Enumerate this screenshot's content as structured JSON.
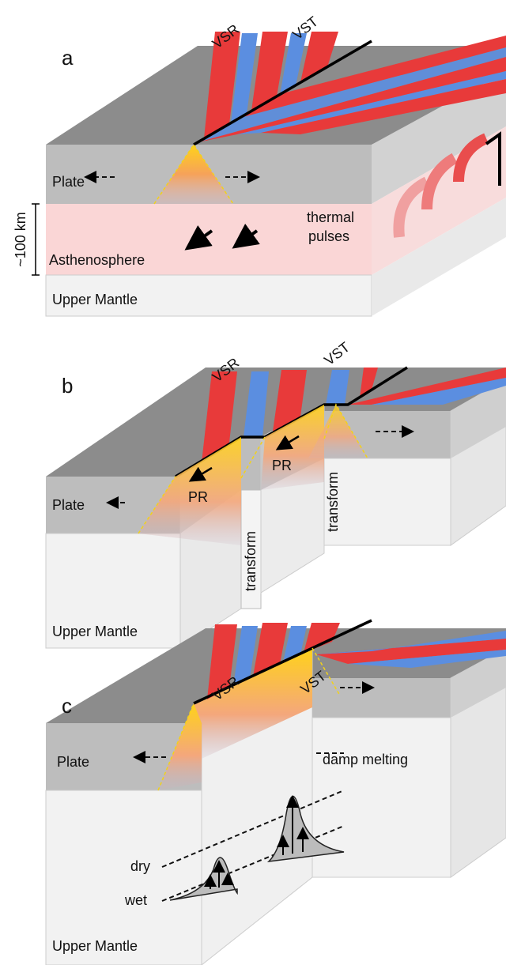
{
  "panels": [
    {
      "label": "a",
      "vsr": "VSR",
      "vst": "VST",
      "plate": "Plate",
      "scale": "~100 km",
      "thermal": "thermal",
      "pulses": "pulses",
      "asthenosphere": "Asthenosphere",
      "mantle": "Upper Mantle"
    },
    {
      "label": "b",
      "vsr": "VSR",
      "vst": "VST",
      "pr": [
        "PR",
        "PR"
      ],
      "plate": "Plate",
      "transform": [
        "transform",
        "transform"
      ],
      "mantle": "Upper Mantle"
    },
    {
      "label": "c",
      "vsr": "VSR",
      "vst": "VST",
      "plate": "Plate",
      "damp": "damp melting",
      "dry": "dry",
      "wet": "wet",
      "mantle": "Upper Mantle"
    }
  ]
}
